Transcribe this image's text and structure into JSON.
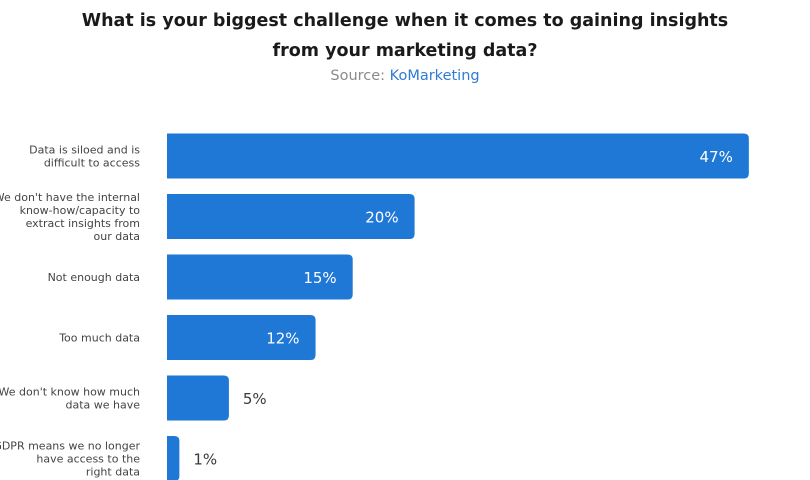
{
  "title": {
    "line1": "What is your biggest challenge when it comes to gaining insights",
    "line2": "from your marketing data?"
  },
  "source": {
    "prefix": "Source:",
    "name": "KoMarketing"
  },
  "colors": {
    "bar": "#1f77d6",
    "source_link": "#2f7bd6"
  },
  "chart_data": {
    "type": "bar",
    "orientation": "horizontal",
    "categories": [
      [
        "Data is siloed and is",
        "difficult to access"
      ],
      [
        "We don't have the internal",
        "know-how/capacity to",
        "extract insights from",
        "our data"
      ],
      [
        "Not enough data"
      ],
      [
        "Too much data"
      ],
      [
        "We don't know how much",
        "data we have"
      ],
      [
        "GDPR means we no longer",
        "have access to the",
        "right data"
      ]
    ],
    "values": [
      47,
      20,
      15,
      12,
      5,
      1
    ],
    "value_labels": [
      "47%",
      "20%",
      "15%",
      "12%",
      "5%",
      "1%"
    ],
    "unit": "%",
    "grid": false,
    "legend": "none",
    "axes": "hidden"
  }
}
